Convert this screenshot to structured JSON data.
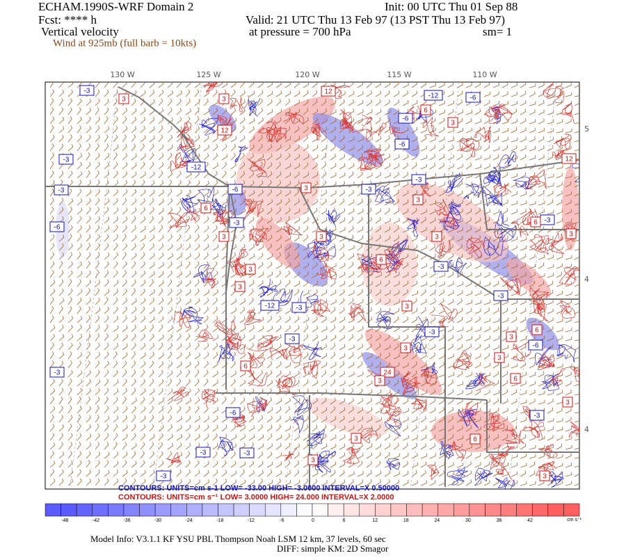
{
  "header": {
    "title": "ECHAM.1990S-WRF Domain 2",
    "init": "Init: 00 UTC Thu 01 Sep 88",
    "forecast": "Fcst: **** h",
    "valid": "Valid: 21 UTC Thu 13 Feb 97 (13 PST Thu 13 Feb 97)",
    "field": "Vertical velocity",
    "level": "at pressure =  700 hPa",
    "smoothing": "sm= 1",
    "wind": "Wind at 925mb (full barb = 10kts)"
  },
  "map": {
    "longitude_labels": [
      "130 W",
      "125 W",
      "120 W",
      "115 W",
      "110 W"
    ],
    "latitude_labels": [
      "5",
      "4",
      "4"
    ],
    "contour_labels": [
      "-3",
      "3",
      "3",
      "12",
      "-12",
      "-6",
      "6",
      "-6",
      "12",
      "-6",
      "3",
      "-3",
      "-12",
      "-6",
      "-3",
      "3",
      "-3",
      "-3",
      "3",
      "6",
      "-3",
      "-6",
      "3",
      "3",
      "6",
      "3",
      "-3",
      "3",
      "6",
      "12",
      "3",
      "-3",
      "-12",
      "-3",
      "3",
      "-3",
      "-3",
      "-3",
      "6",
      "-6",
      "3",
      "3",
      "3",
      "6",
      "-3",
      "24",
      "3",
      "6",
      "-6",
      "-3",
      "3",
      "3",
      "6",
      "-3",
      "-3",
      "3",
      "-3",
      "3",
      "3"
    ]
  },
  "contours": {
    "negative": "CONTOURS:  UNITS=cm s-1  LOW= -33.00   HIGH= -3.0000   INTERVAL=X 0.50000",
    "positive": "CONTOURS:  UNITS=cm s⁻¹  LOW=  3.0000     HIGH=  24.000     INTERVAL=X  2.0000"
  },
  "colorbar": {
    "ticks": [
      -48,
      -42,
      -36,
      -30,
      -24,
      -18,
      -12,
      -6,
      0,
      6,
      12,
      18,
      24,
      30,
      36,
      42
    ],
    "units": "cm s⁻¹"
  },
  "footer": {
    "model_info": "Model Info: V3.1.1    KF     YSU PBL  Thompson    Noah LSM  12 km,    37 levels,    60 sec",
    "diffusion": "DIFF: simple KM: 2D Smagor"
  }
}
